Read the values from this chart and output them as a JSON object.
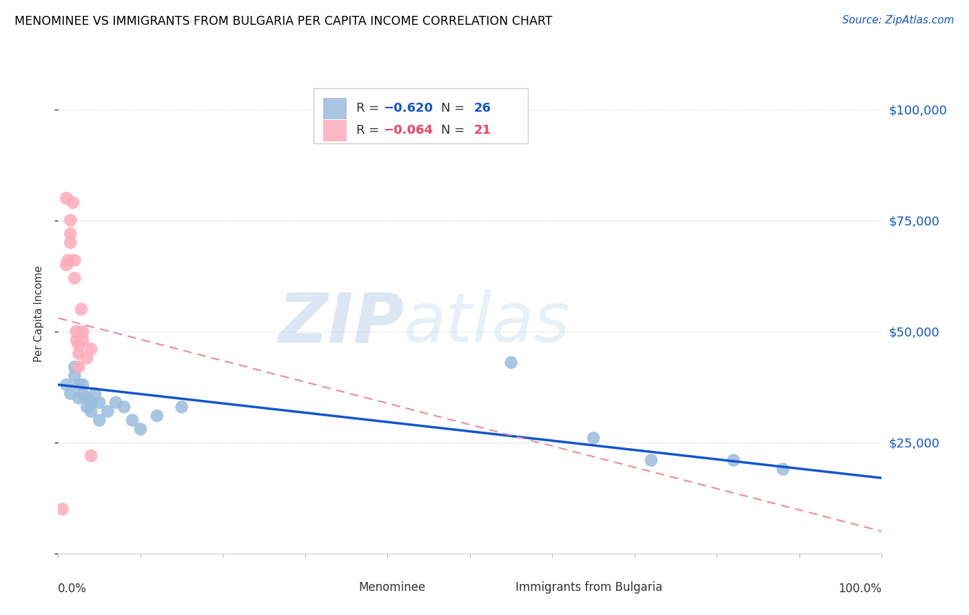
{
  "title": "MENOMINEE VS IMMIGRANTS FROM BULGARIA PER CAPITA INCOME CORRELATION CHART",
  "source": "Source: ZipAtlas.com",
  "ylabel": "Per Capita Income",
  "blue_color": "#99BBDD",
  "pink_color": "#FFAABB",
  "blue_line_color": "#1155CC",
  "pink_line_color": "#EE8899",
  "watermark_zip": "ZIP",
  "watermark_atlas": "atlas",
  "background_color": "#FFFFFF",
  "grid_color": "#DDDDEE",
  "menominee_x": [
    0.01,
    0.015,
    0.02,
    0.02,
    0.025,
    0.025,
    0.03,
    0.03,
    0.035,
    0.035,
    0.04,
    0.04,
    0.045,
    0.05,
    0.05,
    0.06,
    0.07,
    0.08,
    0.09,
    0.1,
    0.12,
    0.15,
    0.55,
    0.65,
    0.72,
    0.82,
    0.88
  ],
  "menominee_y": [
    38000,
    36000,
    40000,
    42000,
    38000,
    35000,
    38000,
    36000,
    35000,
    33000,
    34000,
    32000,
    36000,
    34000,
    30000,
    32000,
    34000,
    33000,
    30000,
    28000,
    31000,
    33000,
    43000,
    26000,
    21000,
    21000,
    19000
  ],
  "bulgaria_x": [
    0.005,
    0.01,
    0.01,
    0.012,
    0.015,
    0.015,
    0.015,
    0.018,
    0.02,
    0.02,
    0.022,
    0.022,
    0.025,
    0.025,
    0.025,
    0.028,
    0.03,
    0.03,
    0.035,
    0.04,
    0.04
  ],
  "bulgaria_y": [
    10000,
    80000,
    65000,
    66000,
    70000,
    72000,
    75000,
    79000,
    66000,
    62000,
    50000,
    48000,
    47000,
    45000,
    42000,
    55000,
    50000,
    48000,
    44000,
    46000,
    22000
  ],
  "blue_trend_x0": 0.0,
  "blue_trend_y0": 38000,
  "blue_trend_x1": 1.0,
  "blue_trend_y1": 17000,
  "pink_trend_x0": 0.0,
  "pink_trend_y0": 53000,
  "pink_trend_x1": 1.0,
  "pink_trend_y1": 5000,
  "yticks": [
    0,
    25000,
    50000,
    75000,
    100000
  ],
  "ytick_labels": [
    "",
    "$25,000",
    "$50,000",
    "$75,000",
    "$100,000"
  ],
  "xlim": [
    0,
    1.0
  ],
  "ylim": [
    0,
    108000
  ]
}
